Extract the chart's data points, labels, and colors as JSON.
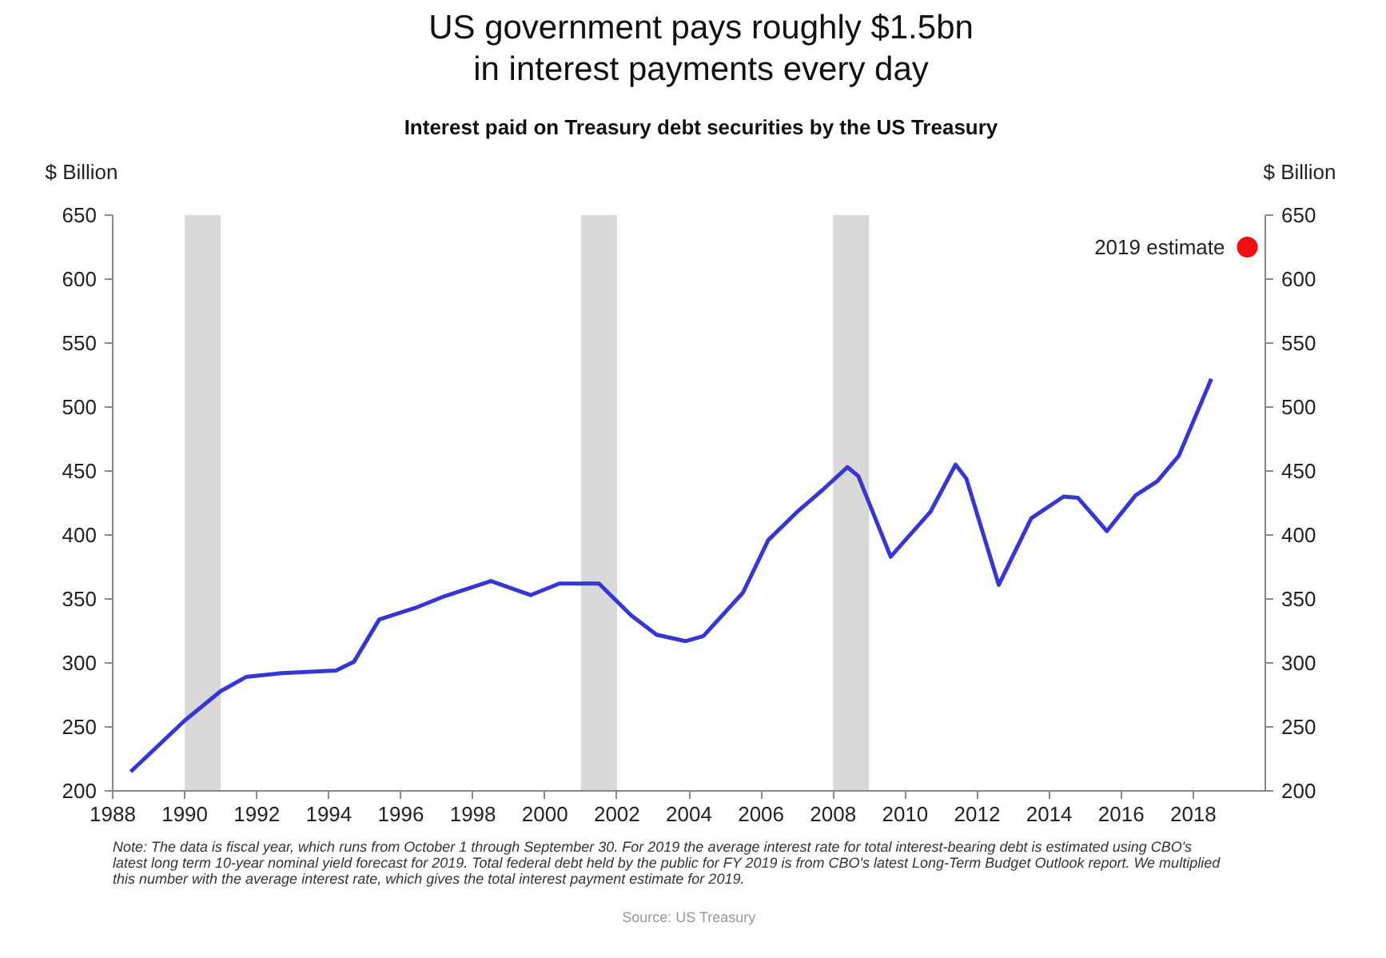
{
  "chart_data": {
    "type": "line",
    "title": "US government pays roughly $1.5bn in interest payments every day",
    "subtitle": "Interest paid on Treasury debt securities by the US Treasury",
    "ylabel": "$ Billion",
    "y2label": "$ Billion",
    "xlim": [
      1988,
      2020
    ],
    "xticks": [
      1988,
      1990,
      1992,
      1994,
      1996,
      1998,
      2000,
      2002,
      2004,
      2006,
      2008,
      2010,
      2012,
      2014,
      2016,
      2018
    ],
    "ylim": [
      200,
      650
    ],
    "yticks": [
      200,
      250,
      300,
      350,
      400,
      450,
      500,
      550,
      600,
      650
    ],
    "y2lim": [
      200,
      650
    ],
    "y2ticks": [
      200,
      250,
      300,
      350,
      400,
      450,
      500,
      550,
      600,
      650
    ],
    "grid": false,
    "legend": false,
    "series": [
      {
        "type": "line",
        "color": "#3535d8",
        "x": [
          1988.5,
          1990,
          1991,
          1991.7,
          1992.7,
          1994.2,
          1994.7,
          1995.4,
          1996.4,
          1997.2,
          1998.5,
          1999.6,
          2000.4,
          2001.5,
          2002.4,
          2003.1,
          2003.9,
          2004.4,
          2005.5,
          2006.2,
          2007.0,
          2007.7,
          2008.4,
          2008.7,
          2009.6,
          2010.7,
          2011.4,
          2011.7,
          2012.6,
          2013.5,
          2014.4,
          2014.8,
          2015.6,
          2016.4,
          2017.0,
          2017.6,
          2018.5
        ],
        "values": [
          215,
          255,
          278,
          289,
          292,
          294,
          301,
          334,
          343,
          352,
          364,
          353,
          362,
          362,
          337,
          322,
          317,
          321,
          355,
          396,
          418,
          435,
          453,
          446,
          383,
          418,
          455,
          444,
          361,
          413,
          430,
          429,
          403,
          431,
          442,
          462,
          522
        ]
      },
      {
        "type": "scatter",
        "name": "2019 estimate",
        "color": "#ee1111",
        "marker": "circle",
        "x": [
          2019.5
        ],
        "values": [
          625
        ]
      }
    ],
    "bands": [
      {
        "axis": "x",
        "from": 1990,
        "to": 1991,
        "color": "#d9d9d9"
      },
      {
        "axis": "x",
        "from": 2001,
        "to": 2002,
        "color": "#d9d9d9"
      },
      {
        "axis": "x",
        "from": 2008,
        "to": 2009,
        "color": "#d9d9d9"
      }
    ],
    "annotations": [
      "Note: The data is fiscal year, which runs from October 1 through September 30. For 2019 the average interest rate for total interest-bearing debt is estimated using CBO's latest long term 10-year nominal yield forecast for 2019. Total federal debt held by the public for FY 2019 is from CBO's latest Long-Term Budget Outlook report. We multiplied this number with the average interest rate, which gives the total interest payment estimate for 2019.",
      "Source: US Treasury"
    ]
  }
}
